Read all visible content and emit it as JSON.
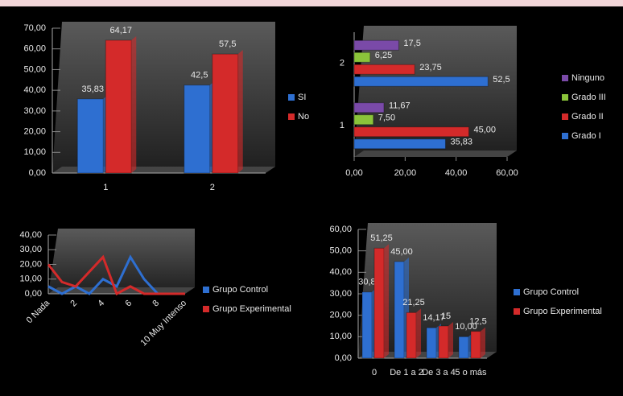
{
  "chart_data": [
    {
      "type": "bar",
      "categories": [
        "1",
        "2"
      ],
      "series": [
        {
          "name": "SI",
          "color": "#2e6fd1",
          "values": [
            35.83,
            42.5
          ],
          "value_labels": [
            "35,83",
            "42,5"
          ]
        },
        {
          "name": "No",
          "color": "#d42a2a",
          "values": [
            64.17,
            57.5
          ],
          "value_labels": [
            "64,17",
            "57,5"
          ]
        }
      ],
      "ylim": [
        0,
        70
      ],
      "yticks": [
        {
          "value": 0,
          "label": "0,00"
        },
        {
          "value": 10,
          "label": "10,00"
        },
        {
          "value": 20,
          "label": "20,00"
        },
        {
          "value": 30,
          "label": "30,00"
        },
        {
          "value": 40,
          "label": "40,00"
        },
        {
          "value": 50,
          "label": "50,00"
        },
        {
          "value": 60,
          "label": "60,00"
        },
        {
          "value": 70,
          "label": "70,00"
        }
      ]
    },
    {
      "type": "barh",
      "categories": [
        "1",
        "2"
      ],
      "series": [
        {
          "name": "Grado I",
          "color": "#2e6fd1",
          "values": [
            35.83,
            52.5
          ],
          "value_labels": [
            "35,83",
            "52,5"
          ]
        },
        {
          "name": "Grado II",
          "color": "#d42a2a",
          "values": [
            45,
            23.75
          ],
          "value_labels": [
            "45,00",
            "23,75"
          ]
        },
        {
          "name": "Grado III",
          "color": "#8bc43a",
          "values": [
            7.5,
            6.25
          ],
          "value_labels": [
            "7,50",
            "6,25"
          ]
        },
        {
          "name": "Ninguno",
          "color": "#7a4aa8",
          "values": [
            11.67,
            17.5
          ],
          "value_labels": [
            "11,67",
            "17,5"
          ]
        }
      ],
      "xlim": [
        0,
        60
      ],
      "xticks": [
        {
          "value": 0,
          "label": "0,00"
        },
        {
          "value": 20,
          "label": "20,00"
        },
        {
          "value": 40,
          "label": "40,00"
        },
        {
          "value": 60,
          "label": "60,00"
        }
      ]
    },
    {
      "type": "line",
      "categories": [
        "0 Nada",
        null,
        "2",
        null,
        "4",
        null,
        "6",
        null,
        "8",
        null,
        "10 Muy Intenso"
      ],
      "series": [
        {
          "name": "Grupo Control",
          "color": "#2e6fd1",
          "values": [
            5,
            0,
            5,
            0,
            10,
            5,
            25,
            10,
            0,
            0,
            0
          ]
        },
        {
          "name": "Grupo Experimental",
          "color": "#d42a2a",
          "values": [
            20,
            8,
            5,
            15,
            25,
            0,
            5,
            0,
            0,
            0,
            0
          ]
        }
      ],
      "ylim": [
        0,
        40
      ],
      "yticks": [
        {
          "value": 0,
          "label": "0,00"
        },
        {
          "value": 10,
          "label": "10,00"
        },
        {
          "value": 20,
          "label": "20,00"
        },
        {
          "value": 30,
          "label": "30,00"
        },
        {
          "value": 40,
          "label": "40,00"
        }
      ]
    },
    {
      "type": "bar",
      "categories": [
        "0",
        "De 1 a 2",
        "De 3 a 4",
        "5 o más"
      ],
      "series": [
        {
          "name": "Grupo Control",
          "color": "#2e6fd1",
          "values": [
            30.83,
            45,
            14.17,
            10
          ],
          "value_labels": [
            "30,83",
            "45,00",
            "14,17",
            "10,00"
          ]
        },
        {
          "name": "Grupo Experimental",
          "color": "#d42a2a",
          "values": [
            51.25,
            21.25,
            15,
            12.5
          ],
          "value_labels": [
            "51,25",
            "21,25",
            "15",
            "12,5"
          ]
        }
      ],
      "ylim": [
        0,
        60
      ],
      "yticks": [
        {
          "value": 0,
          "label": "0,00"
        },
        {
          "value": 10,
          "label": "10,00"
        },
        {
          "value": 20,
          "label": "20,00"
        },
        {
          "value": 30,
          "label": "30,00"
        },
        {
          "value": 40,
          "label": "40,00"
        },
        {
          "value": 50,
          "label": "50,00"
        },
        {
          "value": 60,
          "label": "60,00"
        }
      ]
    }
  ]
}
